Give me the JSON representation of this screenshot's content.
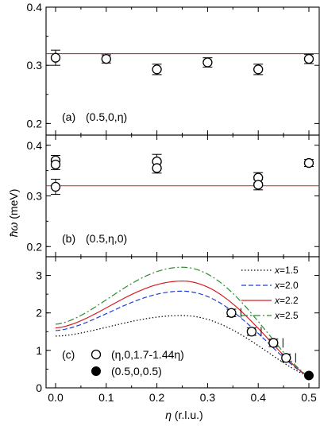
{
  "chart_data": [
    {
      "type": "scatter",
      "panel_label": "(a)",
      "panel_q": "(0.5,0,η)",
      "ylim": [
        0.18,
        0.4
      ],
      "xlim": [
        -0.02,
        0.52
      ],
      "yticks": [
        "0.2",
        "0.3",
        "0.4"
      ],
      "series": [
        {
          "kind": "points_open",
          "x": [
            0.0,
            0.1,
            0.2,
            0.3,
            0.4,
            0.5
          ],
          "y": [
            0.313,
            0.311,
            0.293,
            0.305,
            0.293,
            0.311
          ],
          "err": [
            0.013,
            0.007,
            0.009,
            0.008,
            0.009,
            0.008
          ]
        },
        {
          "kind": "hline",
          "color": "#d62020",
          "y": 0.32
        }
      ]
    },
    {
      "type": "scatter",
      "panel_label": "(b)",
      "panel_q": "(0.5,η,0)",
      "ylim": [
        0.18,
        0.42
      ],
      "xlim": [
        -0.02,
        0.52
      ],
      "yticks": [
        "0.2",
        "0.3",
        "0.4"
      ],
      "series": [
        {
          "kind": "points_open",
          "x": [
            0.0,
            0.0,
            0.0,
            0.2,
            0.2,
            0.4,
            0.4,
            0.5
          ],
          "y": [
            0.37,
            0.362,
            0.318,
            0.368,
            0.355,
            0.336,
            0.322,
            0.365
          ],
          "err": [
            0.01,
            0.01,
            0.015,
            0.014,
            0.01,
            0.01,
            0.01,
            0.007
          ]
        },
        {
          "kind": "hline",
          "color": "#d62020",
          "y": 0.32
        }
      ]
    },
    {
      "type": "line",
      "panel_label": "(c)",
      "ylim": [
        0,
        3.5
      ],
      "xlim": [
        -0.02,
        0.52
      ],
      "yticks": [
        "0",
        "1",
        "2",
        "3"
      ],
      "xticks": [
        "0.0",
        "0.1",
        "0.2",
        "0.3",
        "0.4",
        "0.5"
      ],
      "xlabel": "η (r.l.u.)",
      "series": [
        {
          "name": "x=1.5",
          "var": "x",
          "val": "=1.5",
          "color": "#000000",
          "dash": "1.5,2.5",
          "start": 1.38,
          "peak": 1.93,
          "end": 0.32
        },
        {
          "name": "x=2.0",
          "var": "x",
          "val": "=2.0",
          "color": "#1f3fd6",
          "dash": "6,3",
          "start": 1.53,
          "peak": 2.58,
          "end": 0.32
        },
        {
          "name": "x=2.2",
          "var": "x",
          "val": "=2.2",
          "color": "#d62020",
          "dash": "",
          "start": 1.6,
          "peak": 2.85,
          "end": 0.32
        },
        {
          "name": "x=2.5",
          "var": "x",
          "val": "=2.5",
          "color": "#2e8b2e",
          "dash": "8,3,2,3",
          "start": 1.7,
          "peak": 3.22,
          "end": 0.32
        },
        {
          "kind": "points_open",
          "name": "(η,0,1.7-1.44η)",
          "x": [
            0.347,
            0.387,
            0.43,
            0.455
          ],
          "y": [
            2.0,
            1.5,
            1.2,
            0.8
          ],
          "xerr": [
            0.008,
            0.008,
            0.008,
            0.008
          ],
          "yerr": [
            0.1,
            0.1,
            0.1,
            0.1
          ]
        },
        {
          "kind": "points_filled",
          "name": "(0.5,0,0.5)",
          "x": [
            0.5
          ],
          "y": [
            0.33
          ]
        }
      ]
    }
  ],
  "ylabel": "ħω (meV)",
  "ylabel_hbar": "ħ",
  "ylabel_omega": "ω",
  "ylabel_unit": " (meV)"
}
